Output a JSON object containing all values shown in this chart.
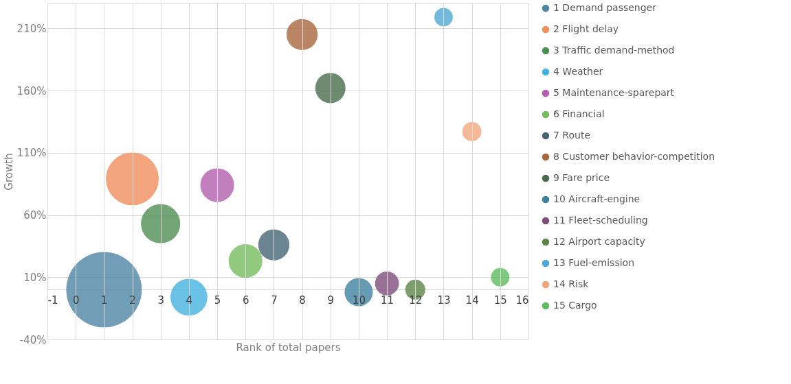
{
  "chart_data": {
    "type": "bubble",
    "xlabel": "Rank of total papers",
    "ylabel": "Growth",
    "xlim": [
      -1,
      16
    ],
    "xticks": [
      -1,
      0,
      1,
      2,
      3,
      4,
      5,
      6,
      7,
      8,
      9,
      10,
      11,
      12,
      13,
      14,
      15,
      16
    ],
    "ylim": [
      -40,
      230
    ],
    "yticks": [
      {
        "value": -40,
        "label": "-40%"
      },
      {
        "value": 0,
        "label": null
      },
      {
        "value": 10,
        "label": "10%"
      },
      {
        "value": 60,
        "label": "60%"
      },
      {
        "value": 110,
        "label": "110%"
      },
      {
        "value": 160,
        "label": "160%"
      },
      {
        "value": 210,
        "label": "210%"
      }
    ],
    "grid": true,
    "legend": "right",
    "series": [
      {
        "name": "1 Demand passenger",
        "color": "#4e84a4",
        "x": [
          1
        ],
        "values": [
          0
        ],
        "sizes": [
          1
        ]
      },
      {
        "name": "2 Flight delay",
        "color": "#ef8f5c",
        "x": [
          2
        ],
        "values": [
          89
        ],
        "sizes": [
          0.49
        ]
      },
      {
        "name": "3 Traffic demand-method",
        "color": "#4f8d54",
        "x": [
          3
        ],
        "values": [
          53
        ],
        "sizes": [
          0.27
        ]
      },
      {
        "name": "4 Weather",
        "color": "#45b3e0",
        "x": [
          4
        ],
        "values": [
          -6
        ],
        "sizes": [
          0.24
        ]
      },
      {
        "name": "5 Maintenance-sparepart",
        "color": "#b35fae",
        "x": [
          5
        ],
        "values": [
          84
        ],
        "sizes": [
          0.2
        ]
      },
      {
        "name": "6 Financial",
        "color": "#76bb5e",
        "x": [
          6
        ],
        "values": [
          23
        ],
        "sizes": [
          0.2
        ]
      },
      {
        "name": "7 Route",
        "color": "#466577",
        "x": [
          7
        ],
        "values": [
          36
        ],
        "sizes": [
          0.17
        ]
      },
      {
        "name": "8 Customer behavior-competition",
        "color": "#a9663f",
        "x": [
          8
        ],
        "values": [
          205
        ],
        "sizes": [
          0.17
        ]
      },
      {
        "name": "9 Fare price",
        "color": "#486b4b",
        "x": [
          9
        ],
        "values": [
          162
        ],
        "sizes": [
          0.16
        ]
      },
      {
        "name": "10 Aircraft-engine",
        "color": "#3f82a0",
        "x": [
          10
        ],
        "values": [
          -2
        ],
        "sizes": [
          0.14
        ]
      },
      {
        "name": "11 Fleet-scheduling",
        "color": "#7f4c7c",
        "x": [
          11
        ],
        "values": [
          5
        ],
        "sizes": [
          0.1
        ]
      },
      {
        "name": "12 Airport capacity",
        "color": "#5f8649",
        "x": [
          12
        ],
        "values": [
          0
        ],
        "sizes": [
          0.07
        ]
      },
      {
        "name": "13 Fuel-emission",
        "color": "#4fa7d3",
        "x": [
          13
        ],
        "values": [
          219
        ],
        "sizes": [
          0.06
        ]
      },
      {
        "name": "14 Risk",
        "color": "#f0a67c",
        "x": [
          14
        ],
        "values": [
          127
        ],
        "sizes": [
          0.064
        ]
      },
      {
        "name": "15 Cargo",
        "color": "#5cbb5e",
        "x": [
          15
        ],
        "values": [
          10
        ],
        "sizes": [
          0.06
        ]
      }
    ]
  }
}
